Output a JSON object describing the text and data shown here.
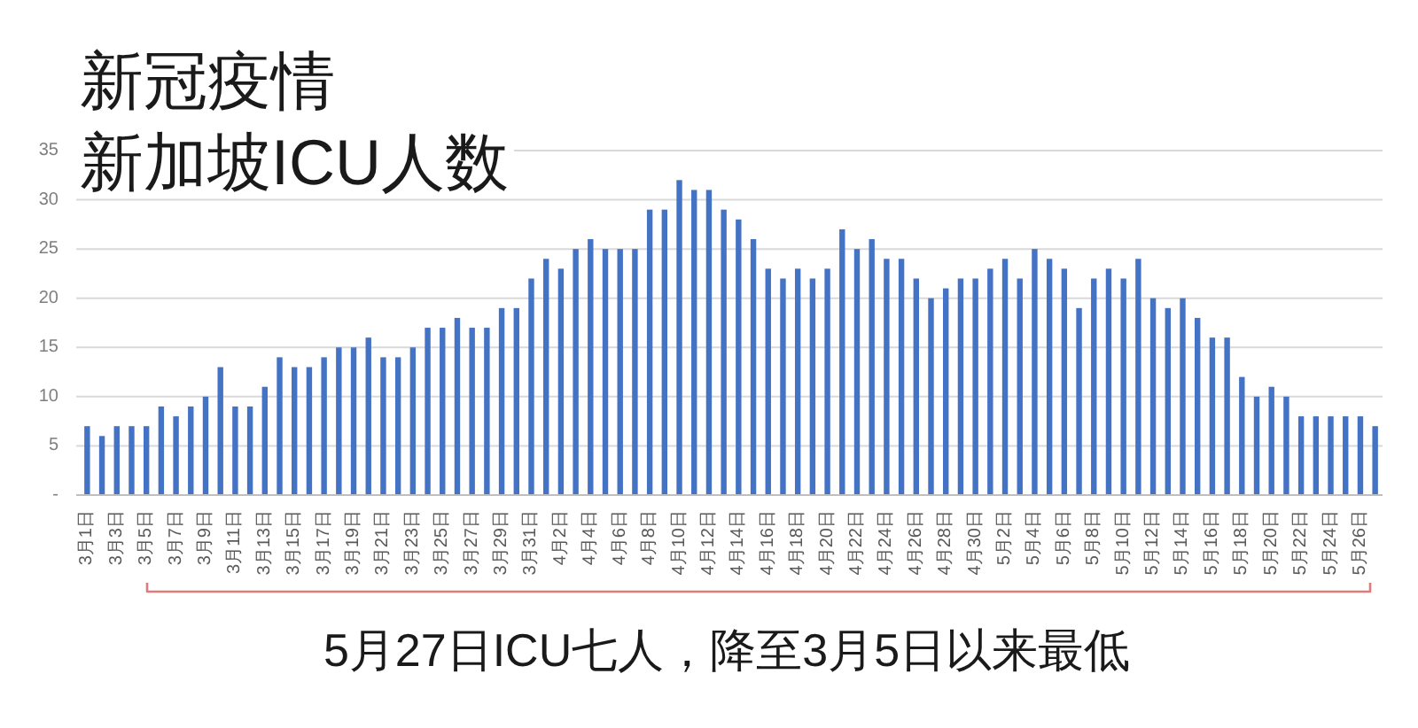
{
  "chart_data": {
    "type": "bar",
    "title": "新冠疫情",
    "subtitle": "新加坡ICU人数",
    "annotations": [
      "5月27日ICU七人，降至3月5日以来最低"
    ],
    "categories": [
      "3月1日",
      null,
      "3月3日",
      null,
      "3月5日",
      null,
      "3月7日",
      null,
      "3月9日",
      null,
      "3月11日",
      null,
      "3月13日",
      null,
      "3月15日",
      null,
      "3月17日",
      null,
      "3月19日",
      null,
      "3月21日",
      null,
      "3月23日",
      null,
      "3月25日",
      null,
      "3月27日",
      null,
      "3月29日",
      null,
      "3月31日",
      null,
      "4月2日",
      null,
      "4月4日",
      null,
      "4月6日",
      null,
      "4月8日",
      null,
      "4月10日",
      null,
      "4月12日",
      null,
      "4月14日",
      null,
      "4月16日",
      null,
      "4月18日",
      null,
      "4月20日",
      null,
      "4月22日",
      null,
      "4月24日",
      null,
      "4月26日",
      null,
      "4月28日",
      null,
      "4月30日",
      null,
      "5月2日",
      null,
      "5月4日",
      null,
      "5月6日",
      null,
      "5月8日",
      null,
      "5月10日",
      null,
      "5月12日",
      null,
      "5月14日",
      null,
      "5月16日",
      null,
      "5月18日",
      null,
      "5月20日",
      null,
      "5月22日",
      null,
      "5月24日",
      null,
      "5月26日",
      null
    ],
    "values": [
      7,
      6,
      7,
      7,
      7,
      9,
      8,
      9,
      10,
      13,
      9,
      9,
      11,
      14,
      13,
      13,
      14,
      15,
      15,
      16,
      14,
      14,
      15,
      17,
      17,
      18,
      17,
      17,
      19,
      19,
      22,
      24,
      23,
      25,
      26,
      25,
      25,
      25,
      29,
      29,
      32,
      31,
      31,
      29,
      28,
      26,
      23,
      22,
      23,
      22,
      23,
      27,
      25,
      26,
      24,
      24,
      22,
      20,
      21,
      22,
      22,
      23,
      24,
      22,
      25,
      24,
      23,
      19,
      22,
      23,
      22,
      24,
      20,
      19,
      20,
      18,
      16,
      16,
      12,
      10,
      11,
      10,
      8,
      8,
      8,
      8,
      8,
      7
    ],
    "color": "#4472c4",
    "ylim": [
      0,
      35
    ],
    "yticks": [
      {
        "value": 0,
        "label": "-"
      },
      5,
      10,
      15,
      20,
      25,
      30,
      35
    ],
    "grid": "y"
  }
}
